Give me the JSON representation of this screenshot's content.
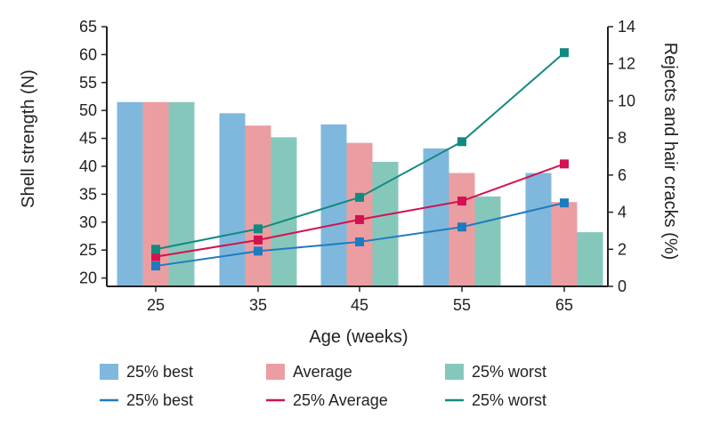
{
  "chart_data": {
    "type": "bar+line",
    "categories": [
      "25",
      "35",
      "45",
      "55",
      "65"
    ],
    "xlabel": "Age (weeks)",
    "ylabel": "Shell strength (N)",
    "y2label": "Rejects and hair cracks (%)",
    "ylim": [
      18.5,
      65
    ],
    "y_ticks": [
      20,
      25,
      30,
      35,
      40,
      45,
      50,
      55,
      60,
      65
    ],
    "y2lim": [
      0,
      14
    ],
    "y2_ticks": [
      0,
      2,
      4,
      6,
      8,
      10,
      12,
      14
    ],
    "bar_series": [
      {
        "name": "25% best",
        "color": "#7fb8dc",
        "values": [
          51.5,
          49.5,
          47.5,
          43.2,
          38.8
        ]
      },
      {
        "name": "Average",
        "color": "#eb9ea2",
        "values": [
          51.5,
          47.3,
          44.2,
          38.8,
          33.6
        ]
      },
      {
        "name": "25% worst",
        "color": "#86c7bc",
        "values": [
          51.5,
          45.2,
          40.8,
          34.6,
          28.2
        ]
      }
    ],
    "line_series": [
      {
        "name": "25% best",
        "color": "#1f7bbf",
        "values": [
          1.1,
          1.9,
          2.4,
          3.2,
          4.5
        ]
      },
      {
        "name": "25% Average",
        "color": "#d3124f",
        "values": [
          1.6,
          2.5,
          3.6,
          4.6,
          6.6
        ]
      },
      {
        "name": "25% worst",
        "color": "#138a80",
        "values": [
          2.0,
          3.1,
          4.8,
          7.8,
          12.6
        ]
      }
    ],
    "legend": {
      "placement": "bottom",
      "items": [
        {
          "label": "25% best",
          "kind": "bar",
          "color": "#7fb8dc"
        },
        {
          "label": "Average",
          "kind": "bar",
          "color": "#eb9ea2"
        },
        {
          "label": "25% worst",
          "kind": "bar",
          "color": "#86c7bc"
        },
        {
          "label": "25% best",
          "kind": "line",
          "color": "#1f7bbf"
        },
        {
          "label": "25% Average",
          "kind": "line",
          "color": "#d3124f"
        },
        {
          "label": "25% worst",
          "kind": "line",
          "color": "#138a80"
        }
      ]
    },
    "grid": false
  }
}
